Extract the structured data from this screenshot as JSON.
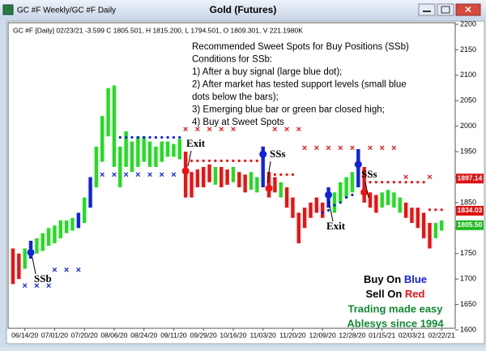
{
  "window": {
    "caption": "GC #F Weekly/GC #F Daily"
  },
  "chart_data": {
    "type": "range_bar",
    "title": "Gold (Futures)",
    "header": "GC #F [Daily] 02/23/21  -3.599  C 1805.501, H 1815.200, L 1794.501, O 1809.301, V 221.1980K",
    "notes": [
      "Recommended Sweet Spots for Buy Positions (SSb)",
      "Conditions for SSb:",
      "1) After a buy signal (large blue dot);",
      "2) After market has tested support levels (small blue",
      "     dots below the bars);",
      "3) Emerging blue bar or green bar closed high;",
      "4) Buy at Sweet Spots"
    ],
    "annotations": [
      "Exit",
      "SSs",
      "Exit",
      "SSs",
      "SSb"
    ],
    "legend": {
      "buy_on": "Buy On ",
      "blue": "Blue",
      "sell_on": "Sell On ",
      "red": "Red",
      "slogan": "Trading made easy",
      "brand": "Ablesys since 1994"
    },
    "categories": [
      null,
      null,
      "06/14/20",
      null,
      null,
      null,
      null,
      "07/01/20",
      null,
      null,
      null,
      null,
      "07/20/20",
      null,
      null,
      null,
      null,
      "08/06/20",
      null,
      null,
      null,
      null,
      "08/24/20",
      null,
      null,
      null,
      null,
      "09/11/20",
      null,
      null,
      null,
      null,
      "09/29/20",
      null,
      null,
      null,
      null,
      "10/16/20",
      null,
      null,
      null,
      null,
      "11/03/20",
      null,
      null,
      null,
      null,
      "11/20/20",
      null,
      null,
      null,
      null,
      "12/09/20",
      null,
      null,
      null,
      null,
      "12/28/20",
      null,
      null,
      null,
      null,
      "01/15/21",
      null,
      null,
      null,
      null,
      "02/03/21",
      null,
      null,
      null,
      null,
      "02/22/21"
    ],
    "lows": [
      1690,
      1700,
      1720,
      1740,
      1750,
      1755,
      1765,
      1770,
      1780,
      1790,
      1795,
      1800,
      1810,
      1840,
      1880,
      1930,
      1980,
      1920,
      1880,
      1920,
      1910,
      1920,
      1930,
      1920,
      1920,
      1930,
      1940,
      1940,
      1935,
      1860,
      1860,
      1880,
      1880,
      1890,
      1885,
      1880,
      1885,
      1890,
      1880,
      1870,
      1875,
      1870,
      1880,
      1860,
      1870,
      1860,
      1840,
      1820,
      1770,
      1800,
      1820,
      1830,
      1820,
      1840,
      1830,
      1850,
      1860,
      1870,
      1880,
      1850,
      1840,
      1830,
      1840,
      1845,
      1840,
      1830,
      1820,
      1810,
      1800,
      1780,
      1760,
      1780,
      1795
    ],
    "highs": [
      1760,
      1750,
      1760,
      1775,
      1780,
      1790,
      1800,
      1805,
      1815,
      1815,
      1820,
      1830,
      1860,
      1900,
      1960,
      2020,
      2075,
      2080,
      1960,
      1990,
      1970,
      1980,
      1980,
      1970,
      1960,
      1970,
      1970,
      1965,
      1975,
      1950,
      1910,
      1915,
      1920,
      1925,
      1920,
      1920,
      1915,
      1920,
      1910,
      1905,
      1910,
      1900,
      1960,
      1910,
      1900,
      1890,
      1880,
      1860,
      1830,
      1840,
      1850,
      1860,
      1850,
      1880,
      1870,
      1890,
      1900,
      1910,
      1955,
      1920,
      1870,
      1865,
      1870,
      1875,
      1870,
      1860,
      1850,
      1840,
      1840,
      1830,
      1810,
      1810,
      1815
    ],
    "bar_colors": "rrgbgggggggbgbgggggggggggggggrrrrrgrrgrrggbrrgrrrrrrrbggggbrrrggggrrrrrgg",
    "palette": {
      "g": "#22dd22",
      "r": "#ee1111",
      "b": "#1122dd"
    },
    "markers": {
      "red_x": {
        "color": "#ee1111",
        "bars": [
          29,
          31,
          33,
          35,
          37,
          44,
          46,
          48,
          49,
          51,
          53,
          55,
          57,
          60,
          62,
          64,
          66,
          70
        ],
        "prices": [
          1993,
          1993,
          1993,
          1993,
          1993,
          1993,
          1993,
          1993,
          1956,
          1956,
          1956,
          1956,
          1956,
          1956,
          1956,
          1956,
          1899,
          1899
        ]
      },
      "blue_x": {
        "color": "#1122dd",
        "bars": [
          2,
          4,
          6,
          7,
          9,
          11,
          15,
          17,
          19,
          21,
          23,
          25,
          27
        ],
        "prices": [
          1686,
          1686,
          1686,
          1717,
          1717,
          1717,
          1904,
          1904,
          1904,
          1904,
          1904,
          1904,
          1904
        ]
      },
      "red_dots": {
        "color": "#ee1111",
        "bars": [
          30,
          31,
          32,
          33,
          34,
          35,
          36,
          37,
          38,
          39,
          40,
          41,
          43,
          44,
          45,
          46,
          47,
          60,
          61,
          62,
          63,
          64,
          65,
          66,
          67,
          68,
          69,
          70,
          71,
          72
        ],
        "prices": [
          1932,
          1932,
          1932,
          1932,
          1932,
          1932,
          1932,
          1932,
          1932,
          1932,
          1932,
          1932,
          1905,
          1905,
          1905,
          1905,
          1905,
          1890,
          1890,
          1890,
          1890,
          1890,
          1890,
          1890,
          1890,
          1890,
          1890,
          1836,
          1836,
          1836
        ]
      },
      "blue_dots": {
        "color": "#1122dd",
        "bars": [
          18,
          19,
          20,
          21,
          22,
          23,
          24,
          25,
          26,
          27,
          28,
          52,
          53,
          54,
          55,
          56,
          57
        ],
        "prices": [
          1978,
          1978,
          1978,
          1978,
          1978,
          1978,
          1978,
          1978,
          1978,
          1978,
          1978,
          1830,
          1835,
          1845,
          1850,
          1860,
          1865
        ]
      },
      "buy_signals": {
        "color": "#1122dd",
        "bars": [
          3,
          42,
          53,
          58
        ],
        "prices": [
          1752,
          1945,
          1865,
          1925
        ]
      },
      "sell_signals": {
        "color": "#ee1111",
        "bars": [
          29,
          43,
          59
        ],
        "prices": [
          1912,
          1878,
          1870
        ]
      }
    },
    "price_tags": [
      {
        "value": 1897.14,
        "label": "1897.14",
        "color": "#dd1111"
      },
      {
        "value": 1834.03,
        "label": "1834.03",
        "color": "#dd1111"
      },
      {
        "value": 1805.5,
        "label": "1805.50",
        "color": "#22bb22"
      }
    ],
    "ylim": [
      1600,
      2200
    ],
    "yticks": [
      1600,
      1650,
      1700,
      1750,
      1800,
      1850,
      1900,
      1950,
      2000,
      2050,
      2100,
      2150,
      2200
    ]
  }
}
